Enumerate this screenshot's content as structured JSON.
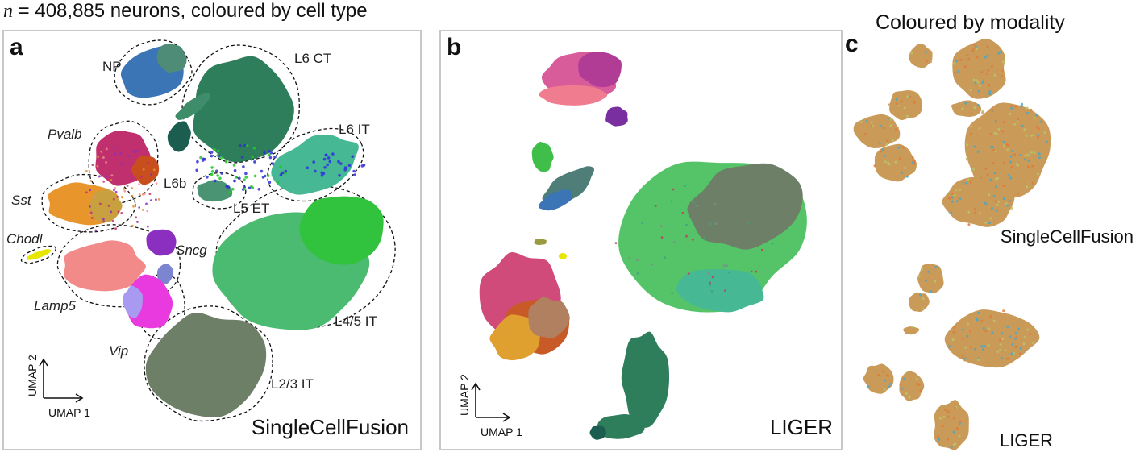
{
  "header": {
    "n_symbol": "n",
    "rest": " = 408,885 neurons, coloured by cell type"
  },
  "panels": {
    "a": {
      "letter": "a",
      "method": "SingleCellFusion"
    },
    "b": {
      "letter": "b",
      "method": "LIGER"
    },
    "c": {
      "letter": "c",
      "title": "Coloured by modality",
      "method_top": "SingleCellFusion",
      "method_bottom": "LIGER"
    }
  },
  "axes": {
    "x_label": "UMAP 1",
    "y_label": "UMAP 2"
  },
  "colors": {
    "NP": "#3c75b5",
    "L6 CT": "#2e7d5b",
    "L6b": "#1b5e4f",
    "L6 IT": "#46b894",
    "L5 ET": "#4a9474",
    "L4/5 IT": "#55c468",
    "L2/3 IT": "#6e7f68",
    "Pvalb": "#c0306e",
    "Sst": "#e8962c",
    "Chodl": "#e6e600",
    "Lamp5": "#f28a8a",
    "Sncg": "#8a2fc0",
    "Vip": "#e83adf",
    "bright-green": "#22c728",
    "modality-1": "#e07a3a",
    "modality-2": "#4aa8c8",
    "modality-3": "#b8c46a"
  },
  "chart_data": [
    {
      "type": "scatter",
      "title": "n = 408,885 neurons, coloured by cell type",
      "panel": "a",
      "method": "SingleCellFusion",
      "xlabel": "UMAP 1",
      "ylabel": "UMAP 2",
      "series": [
        {
          "name": "NP",
          "label": "NP",
          "italic": false
        },
        {
          "name": "L6 CT",
          "label": "L6 CT",
          "italic": false
        },
        {
          "name": "L6 IT",
          "label": "L6 IT",
          "italic": false
        },
        {
          "name": "L6b",
          "label": "L6b",
          "italic": false
        },
        {
          "name": "L5 ET",
          "label": "L5 ET",
          "italic": false
        },
        {
          "name": "L4/5 IT",
          "label": "L4/5 IT",
          "italic": false
        },
        {
          "name": "L2/3 IT",
          "label": "L2/3 IT",
          "italic": false
        },
        {
          "name": "Pvalb",
          "label": "Pvalb",
          "italic": true
        },
        {
          "name": "Sst",
          "label": "Sst",
          "italic": true
        },
        {
          "name": "Chodl",
          "label": "Chodl",
          "italic": true
        },
        {
          "name": "Lamp5",
          "label": "Lamp5",
          "italic": true
        },
        {
          "name": "Sncg",
          "label": "Sncg",
          "italic": true
        },
        {
          "name": "Vip",
          "label": "Vip",
          "italic": true
        }
      ]
    },
    {
      "type": "scatter",
      "panel": "b",
      "method": "LIGER",
      "xlabel": "UMAP 1",
      "ylabel": "UMAP 2"
    },
    {
      "type": "scatter",
      "title": "Coloured by modality",
      "panel": "c",
      "subplots": [
        "SingleCellFusion",
        "LIGER"
      ]
    }
  ]
}
